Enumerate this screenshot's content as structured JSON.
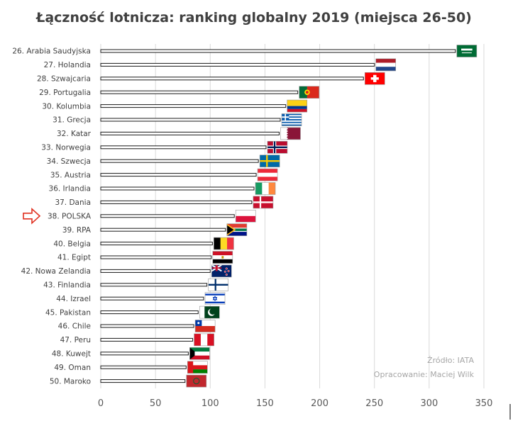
{
  "chart_data": {
    "type": "bar",
    "orientation": "horizontal",
    "title": "Łączność lotnicza: ranking globalny 2019 (miejsca 26-50)",
    "categories": [
      "26. Arabia Saudyjska",
      "27. Holandia",
      "28. Szwajcaria",
      "29. Portugalia",
      "30. Kolumbia",
      "31. Grecja",
      "32. Katar",
      "33. Norwegia",
      "34. Szwecja",
      "35. Austria",
      "36. Irlandia",
      "37. Dania",
      "38. POLSKA",
      "39. RPA",
      "40. Belgia",
      "41. Egipt",
      "42. Nowa Zelandia",
      "43. Finlandia",
      "44. Izrael",
      "45. Pakistan",
      "46. Chile",
      "47. Peru",
      "48. Kuwejt",
      "49. Oman",
      "50. Maroko"
    ],
    "values": [
      324,
      250,
      240,
      180,
      169,
      164,
      163,
      151,
      144,
      142,
      140,
      138,
      122,
      114,
      102,
      101,
      100,
      97,
      94,
      89,
      85,
      84,
      80,
      78,
      77
    ],
    "flags": [
      "sa",
      "nl",
      "ch",
      "pt",
      "co",
      "gr",
      "qa",
      "no",
      "se",
      "at",
      "ie",
      "dk",
      "pl",
      "za",
      "be",
      "eg",
      "nz",
      "fi",
      "il",
      "pk",
      "cl",
      "pe",
      "kw",
      "om",
      "ma"
    ],
    "highlight_index": 12,
    "highlight_marker": "arrow-icon",
    "xlim": [
      0,
      350
    ],
    "xticks": [
      0,
      50,
      100,
      150,
      200,
      250,
      300,
      350
    ],
    "grid": true,
    "xlabel": "",
    "ylabel": "",
    "notes": [
      "Źródło: IATA",
      "Opracowanie: Maciej Wilk"
    ],
    "colors": {
      "bar_fill": "#ffffff",
      "bar_stroke": "#1a1a1a",
      "grid": "#d9d9d9",
      "arrow": "#e03020"
    }
  }
}
